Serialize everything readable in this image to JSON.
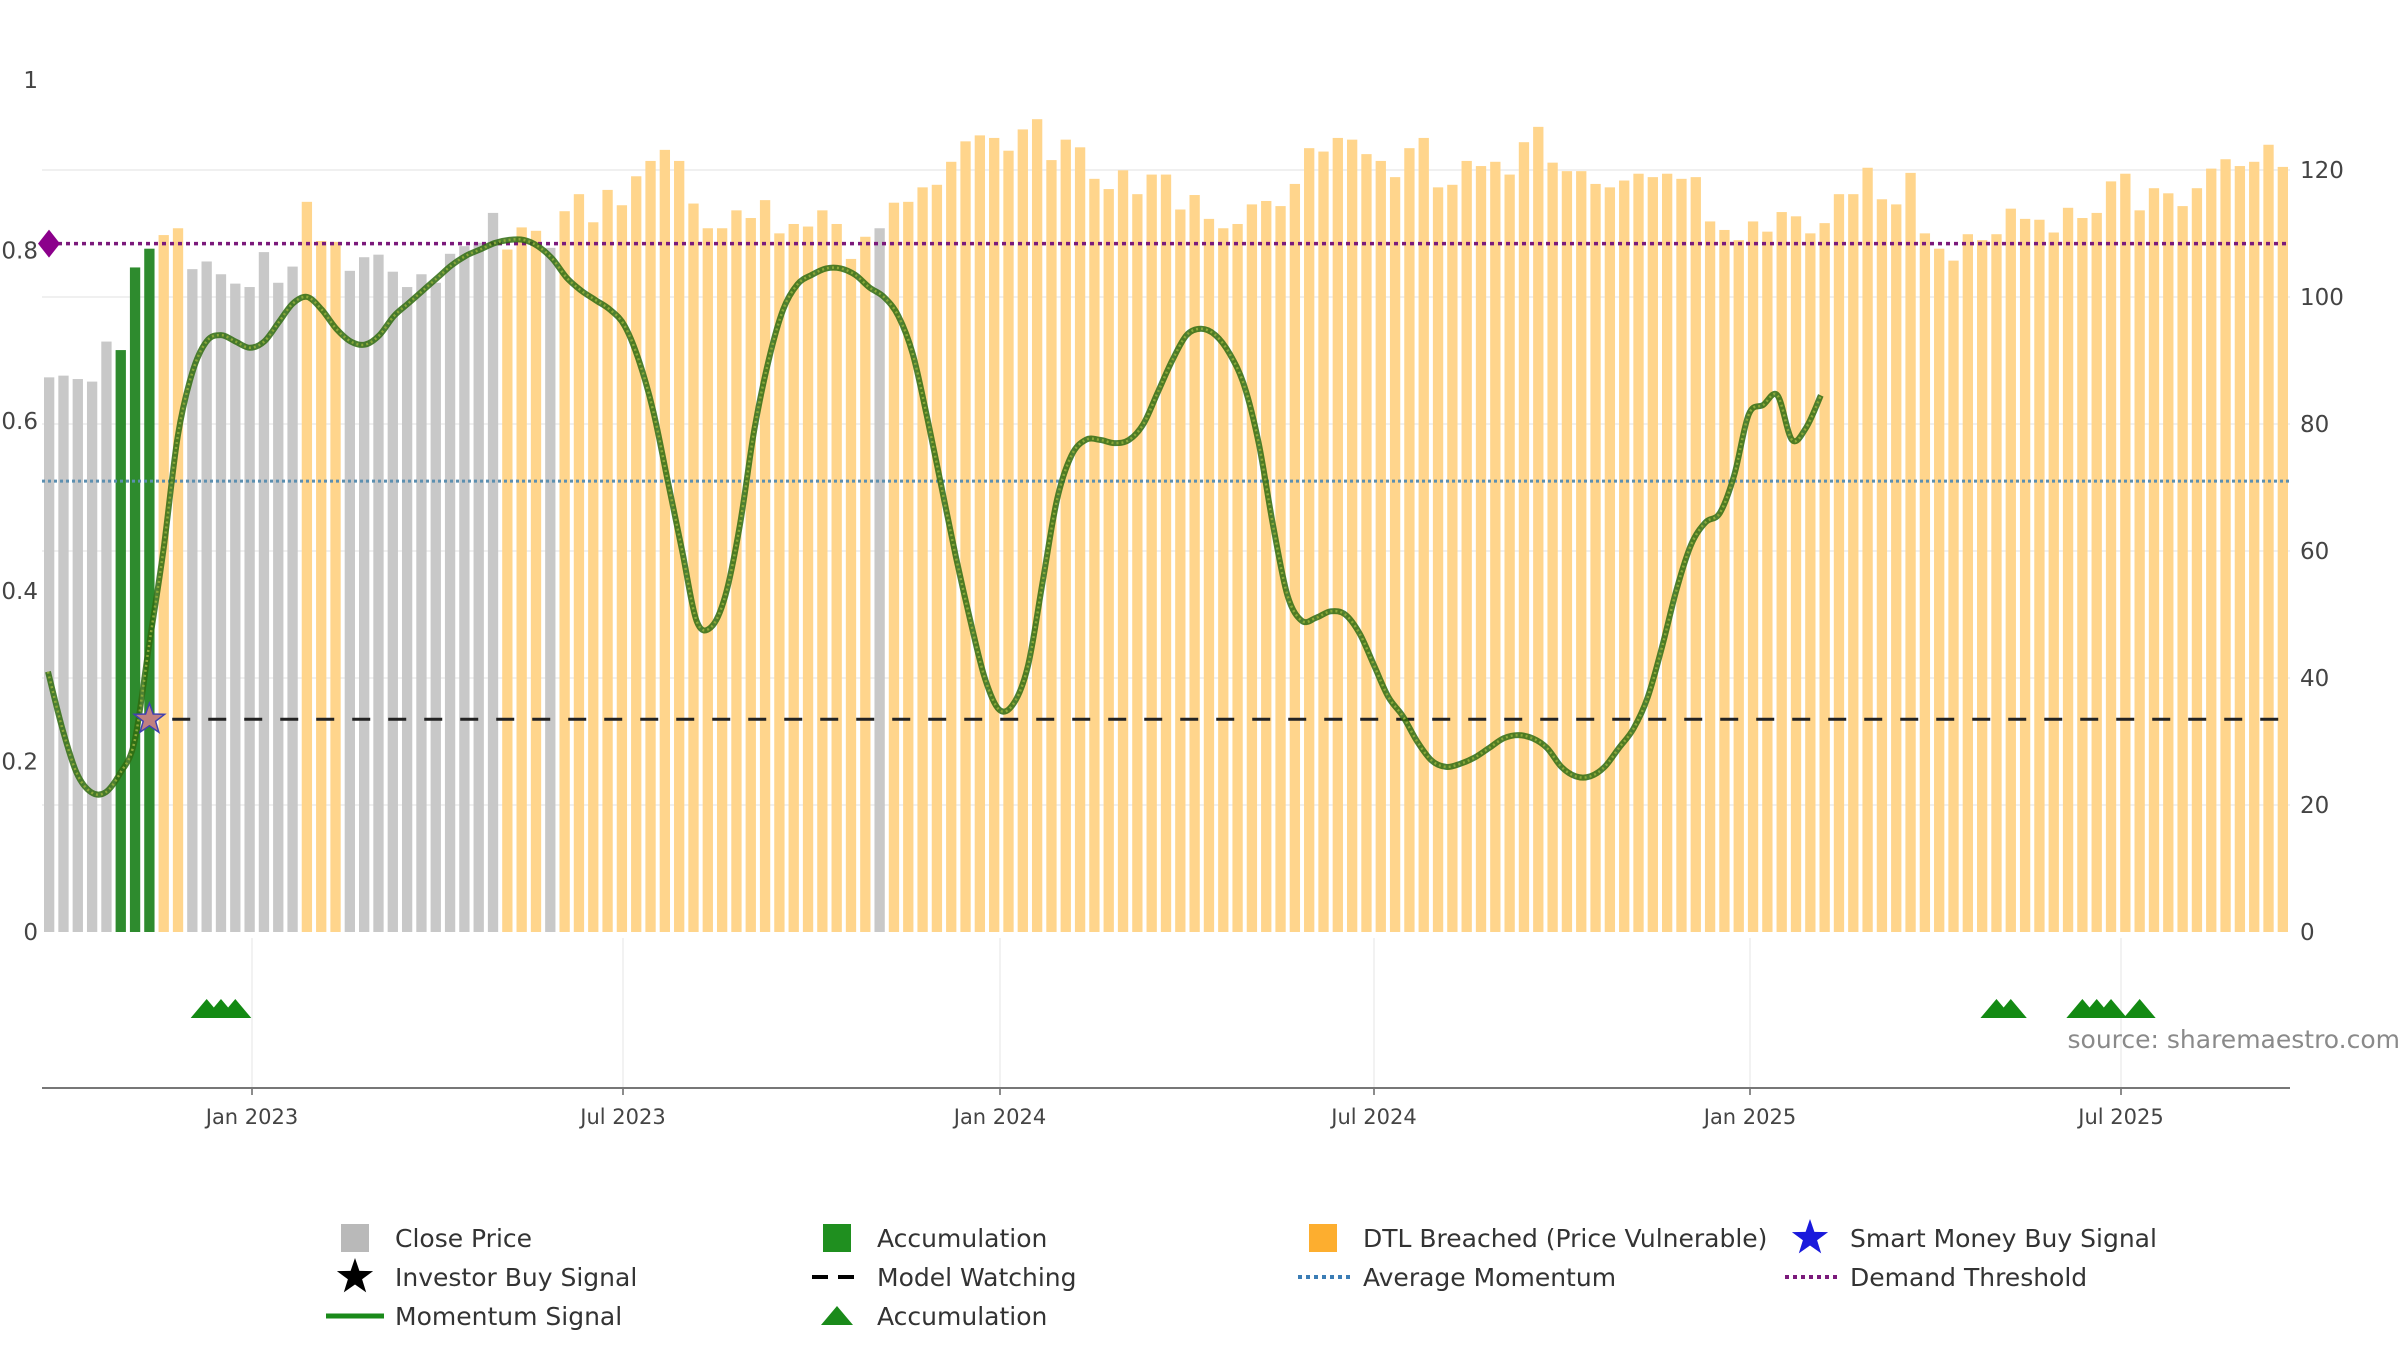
{
  "chart_data": {
    "type": "bar",
    "source": "source: sharemaestro.com",
    "x_tick_labels": [
      "Jan 2023",
      "Jul 2023",
      "Jan 2024",
      "Jul 2024",
      "Jan 2025",
      "Jul 2025"
    ],
    "left_axis": {
      "ticks": [
        "0",
        "0.2",
        "0.4",
        "0.6",
        "0.8",
        "1"
      ],
      "range": [
        0,
        1
      ]
    },
    "right_axis": {
      "ticks": [
        "0",
        "20",
        "40",
        "60",
        "80",
        "100",
        "120"
      ],
      "range": [
        0,
        134
      ]
    },
    "grid": true,
    "legend_position": "bottom",
    "colors": {
      "close": "#c8c8c8",
      "accumulation": "#2e8b2e",
      "dtl": "#ffd58c",
      "momentum": "#5a8a1a",
      "average_momentum": "#5b8fb0",
      "demand_threshold": "#7b1a7b",
      "model_watching": "#222222",
      "smart_money": "#1a1adc",
      "investor": "#000000"
    },
    "close_price_series": {
      "name": "Close Price",
      "values": [
        0.651,
        0.653,
        0.649,
        0.646,
        0.693,
        0.683,
        0.78,
        0.802,
        0.818,
        0.826,
        0.778,
        0.787,
        0.772,
        0.761,
        0.757,
        0.798,
        0.762,
        0.781,
        0.857,
        0.811,
        0.81,
        0.776,
        0.792,
        0.795,
        0.775,
        0.757,
        0.772,
        0.762,
        0.796,
        0.805,
        0.809,
        0.844,
        0.801,
        0.827,
        0.823,
        0.803,
        0.846,
        0.866,
        0.833,
        0.871,
        0.853,
        0.887,
        0.905,
        0.918,
        0.905,
        0.855,
        0.826,
        0.826,
        0.847,
        0.838,
        0.859,
        0.82,
        0.831,
        0.828,
        0.847,
        0.831,
        0.79,
        0.816,
        0.826,
        0.856,
        0.857,
        0.874,
        0.877,
        0.904,
        0.928,
        0.935,
        0.932,
        0.917,
        0.942,
        0.954,
        0.906,
        0.93,
        0.921,
        0.884,
        0.872,
        0.894,
        0.866,
        0.889,
        0.889,
        0.848,
        0.865,
        0.837,
        0.826,
        0.831,
        0.854,
        0.858,
        0.852,
        0.878,
        0.92,
        0.916,
        0.932,
        0.93,
        0.913,
        0.905,
        0.886,
        0.92,
        0.932,
        0.874,
        0.877,
        0.905,
        0.899,
        0.904,
        0.889,
        0.927,
        0.945,
        0.903,
        0.893,
        0.893,
        0.878,
        0.874,
        0.882,
        0.89,
        0.886,
        0.89,
        0.884,
        0.886,
        0.834,
        0.824,
        0.812,
        0.834,
        0.822,
        0.845,
        0.84,
        0.82,
        0.832,
        0.866,
        0.866,
        0.897,
        0.86,
        0.854,
        0.891,
        0.82,
        0.802,
        0.788,
        0.819,
        0.812,
        0.819,
        0.849,
        0.837,
        0.836,
        0.821,
        0.85,
        0.838,
        0.844,
        0.881,
        0.89,
        0.847,
        0.873,
        0.867,
        0.852,
        0.873,
        0.896,
        0.907,
        0.899,
        0.904,
        0.924,
        0.898
      ]
    },
    "bar_state_codes": "CCCCCAAADDCCCCCCCCDDDCCCCCCCCCCCDDDCDDDDDDDDDDDDDDDDDDDDDDCDDDDDDDDDDDDDDDDDDDDDDDDDDDDDDDDDDDDDDDDDDDDDDDDDDDDDDDDDDDDDDDDDDDDDDDDDDDDDDDDDDDDDDDDDDDDDDDDDDDDDDDDDDDDDDACDDDDDDDDDDDDDDDDDDDDDDD",
    "bar_state_legend": {
      "C": "Close Price",
      "A": "Accumulation",
      "D": "DTL Breached (Price Vulnerable)"
    },
    "momentum_series": {
      "name": "Momentum Signal",
      "values": [
        41,
        32,
        25,
        22,
        22,
        25,
        30,
        45,
        60,
        78,
        88,
        93,
        94,
        93,
        92,
        93,
        96,
        99,
        100,
        98,
        95,
        93,
        92.5,
        94,
        97,
        99,
        101,
        103,
        105,
        106.5,
        107.5,
        108.5,
        109,
        109,
        108,
        106,
        103,
        101,
        99.5,
        98,
        95.5,
        90,
        82,
        71,
        60,
        49,
        48,
        53,
        64,
        79,
        90,
        98,
        102,
        103.5,
        104.5,
        104.5,
        103.5,
        101.5,
        100,
        97,
        91,
        81,
        70,
        59,
        49,
        40,
        35,
        36,
        42,
        55,
        68,
        75,
        77.5,
        77.5,
        77,
        77.5,
        80,
        85,
        90,
        94,
        95,
        94,
        91,
        86,
        77,
        64,
        53,
        49,
        49.5,
        50.5,
        50,
        47,
        42,
        37,
        34,
        30,
        27,
        26,
        26.5,
        27.5,
        29,
        30.5,
        31,
        30.5,
        29,
        26,
        24.5,
        24.5,
        26,
        29,
        32,
        37,
        45,
        54,
        61,
        64.5,
        66,
        72,
        81.5,
        83,
        84.5,
        77.5,
        79.5,
        84.5
      ]
    },
    "momentum_x_range": [
      0,
      155
    ],
    "average_momentum": 71,
    "model_watching": 33.5,
    "demand_threshold": 0.808,
    "signal_markers": {
      "smart_money_buy": {
        "x_index": 7,
        "value": 33.5
      },
      "investor_buy": {
        "x_index": 7,
        "value": 33.5
      },
      "demand_marker_value": 0.808
    },
    "accumulation_triangles_x": [
      5,
      6,
      7,
      130,
      131,
      136,
      137,
      138,
      140
    ],
    "legend": [
      {
        "label": "Close Price",
        "symbol": "square",
        "color": "#b9b9b9"
      },
      {
        "label": "Accumulation",
        "symbol": "square",
        "color": "#1f8f1f"
      },
      {
        "label": "DTL Breached (Price Vulnerable)",
        "symbol": "square",
        "color": "#fdae2f"
      },
      {
        "label": "Smart Money Buy Signal",
        "symbol": "star",
        "color": "#1a1adc"
      },
      {
        "label": "Investor Buy Signal",
        "symbol": "star",
        "color": "#000000"
      },
      {
        "label": "Model Watching",
        "symbol": "dash",
        "color": "#000000"
      },
      {
        "label": "Average Momentum",
        "symbol": "dot",
        "color": "#3b7db5"
      },
      {
        "label": "Demand Threshold",
        "symbol": "dot",
        "color": "#7b1a7b"
      },
      {
        "label": "Momentum Signal",
        "symbol": "line",
        "color": "#1a8a1a"
      },
      {
        "label": "Accumulation",
        "symbol": "triangle",
        "color": "#1a8a1a"
      }
    ]
  }
}
